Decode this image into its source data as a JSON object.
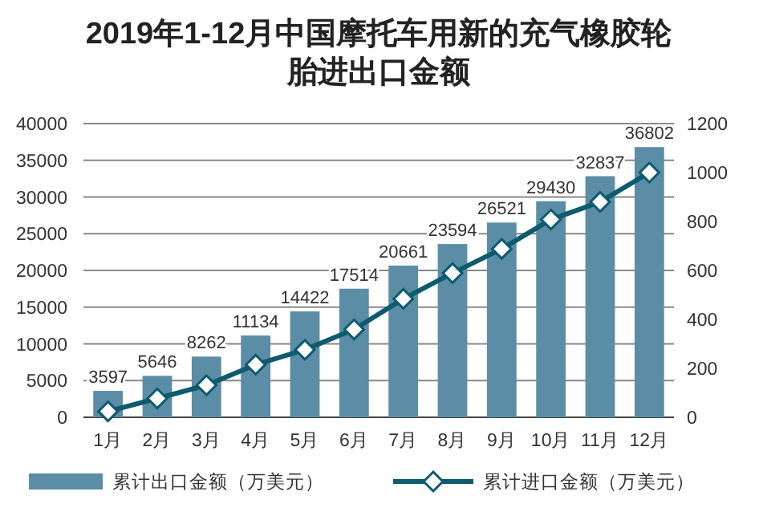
{
  "chart_data": {
    "type": "bar",
    "title": "2019年1-12月中国摩托车用新的充气橡胶轮胎进出口金额",
    "categories": [
      "1月",
      "2月",
      "3月",
      "4月",
      "5月",
      "6月",
      "7月",
      "8月",
      "9月",
      "10月",
      "11月",
      "12月"
    ],
    "series": [
      {
        "name": "累计出口金额（万美元）",
        "color": "#5b8ea6",
        "values": [
          3597,
          5646,
          8262,
          11134,
          14422,
          17514,
          20661,
          23594,
          26521,
          29430,
          32837,
          36802
        ],
        "data_labels": true
      },
      {
        "name": "累计进口金额（万美元）",
        "type": "line",
        "axis": "y2",
        "color": "#0e5a6e",
        "marker": "diamond",
        "values": [
          24,
          77,
          131,
          215,
          276,
          359,
          484,
          589,
          688,
          808,
          880,
          1000
        ]
      }
    ],
    "ylim": [
      0,
      40000
    ],
    "yticks": [
      0,
      5000,
      10000,
      15000,
      20000,
      25000,
      30000,
      35000,
      40000
    ],
    "y2lim": [
      0,
      1200
    ],
    "y2ticks": [
      0,
      200,
      400,
      600,
      800,
      1000,
      1200
    ],
    "grid": "y",
    "legend": "bottom"
  }
}
